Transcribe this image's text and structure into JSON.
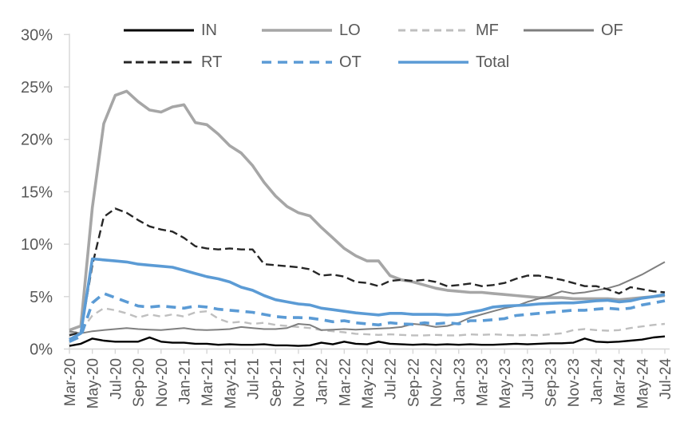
{
  "chart_data": {
    "type": "line",
    "title": "",
    "x_start": "Mar-20",
    "x_end": "Jul-24",
    "x_freq": "monthly",
    "x_tick_labels": [
      "Mar-20",
      "May-20",
      "Jul-20",
      "Sep-20",
      "Nov-20",
      "Jan-21",
      "Mar-21",
      "May-21",
      "Jul-21",
      "Sep-21",
      "Nov-21",
      "Jan-22",
      "Mar-22",
      "May-22",
      "Jul-22",
      "Sep-22",
      "Nov-22",
      "Jan-23",
      "Mar-23",
      "May-23",
      "Jul-23",
      "Sep-23",
      "Nov-23",
      "Jan-24",
      "Mar-24",
      "May-24",
      "Jul-24"
    ],
    "y_ticks": [
      "0%",
      "5%",
      "10%",
      "15%",
      "20%",
      "25%",
      "30%"
    ],
    "ylim": [
      0,
      30
    ],
    "grid": false,
    "legend_position": "top",
    "axis_color": "#d6d6d6",
    "label_color": "#595959",
    "series": [
      {
        "name": "IN",
        "color": "#000000",
        "dash": "",
        "width": 2.4,
        "values": [
          0.3,
          0.5,
          1.0,
          0.8,
          0.7,
          0.7,
          0.7,
          1.1,
          0.7,
          0.6,
          0.6,
          0.5,
          0.5,
          0.4,
          0.45,
          0.4,
          0.4,
          0.45,
          0.35,
          0.35,
          0.3,
          0.35,
          0.6,
          0.45,
          0.7,
          0.5,
          0.45,
          0.7,
          0.5,
          0.45,
          0.4,
          0.45,
          0.4,
          0.45,
          0.4,
          0.45,
          0.4,
          0.4,
          0.45,
          0.5,
          0.45,
          0.5,
          0.55,
          0.55,
          0.6,
          1.0,
          0.7,
          0.65,
          0.7,
          0.8,
          0.9,
          1.1,
          1.2
        ]
      },
      {
        "name": "LO",
        "color": "#a6a6a6",
        "dash": "",
        "width": 3.6,
        "values": [
          1.8,
          2.2,
          13.5,
          21.5,
          24.2,
          24.6,
          23.6,
          22.8,
          22.6,
          23.1,
          23.3,
          21.6,
          21.4,
          20.5,
          19.4,
          18.7,
          17.5,
          15.9,
          14.6,
          13.6,
          13.0,
          12.7,
          11.6,
          10.6,
          9.6,
          8.9,
          8.4,
          8.4,
          7.0,
          6.6,
          6.4,
          6.1,
          5.8,
          5.6,
          5.5,
          5.4,
          5.4,
          5.3,
          5.2,
          5.1,
          5.0,
          4.9,
          4.9,
          4.9,
          4.8,
          4.8,
          4.8,
          4.8,
          4.7,
          4.8,
          4.9,
          5.0,
          5.1
        ]
      },
      {
        "name": "MF",
        "color": "#bfbfbf",
        "dash": "9,6",
        "width": 2.4,
        "values": [
          1.5,
          1.7,
          3.2,
          3.9,
          3.7,
          3.4,
          3.0,
          3.3,
          3.1,
          3.3,
          3.1,
          3.5,
          3.6,
          2.9,
          2.5,
          2.6,
          2.4,
          2.5,
          2.3,
          2.2,
          2.1,
          2.0,
          1.8,
          1.7,
          1.6,
          1.45,
          1.4,
          1.35,
          1.4,
          1.35,
          1.3,
          1.3,
          1.35,
          1.3,
          1.3,
          1.4,
          1.35,
          1.4,
          1.35,
          1.3,
          1.35,
          1.3,
          1.4,
          1.5,
          1.8,
          1.9,
          1.8,
          1.75,
          1.8,
          2.0,
          2.15,
          2.3,
          2.4
        ]
      },
      {
        "name": "OF",
        "color": "#7f7f7f",
        "dash": "",
        "width": 2.0,
        "values": [
          1.7,
          1.5,
          1.7,
          1.8,
          1.9,
          2.0,
          1.9,
          1.85,
          1.8,
          1.9,
          2.0,
          1.85,
          1.8,
          1.85,
          1.9,
          2.1,
          2.0,
          1.9,
          1.9,
          2.0,
          2.4,
          2.3,
          1.8,
          1.85,
          1.9,
          1.85,
          1.9,
          1.95,
          2.0,
          2.1,
          2.4,
          2.3,
          2.1,
          2.2,
          2.5,
          3.0,
          3.3,
          3.6,
          3.9,
          4.1,
          4.5,
          4.8,
          5.1,
          5.5,
          5.3,
          5.4,
          5.6,
          5.8,
          6.1,
          6.6,
          7.1,
          7.7,
          8.3
        ]
      },
      {
        "name": "RT",
        "color": "#262626",
        "dash": "10,5",
        "width": 2.4,
        "values": [
          1.3,
          1.6,
          8.0,
          12.6,
          13.4,
          13.0,
          12.3,
          11.7,
          11.4,
          11.2,
          10.6,
          9.8,
          9.6,
          9.5,
          9.6,
          9.5,
          9.5,
          8.1,
          8.0,
          7.9,
          7.8,
          7.6,
          7.0,
          7.1,
          6.9,
          6.4,
          6.3,
          6.0,
          6.5,
          6.6,
          6.5,
          6.6,
          6.4,
          6.0,
          6.1,
          6.25,
          6.0,
          6.1,
          6.3,
          6.7,
          7.0,
          7.0,
          6.8,
          6.6,
          6.3,
          6.0,
          6.0,
          5.7,
          5.3,
          5.9,
          5.7,
          5.5,
          5.4
        ]
      },
      {
        "name": "OT",
        "color": "#5b9bd5",
        "dash": "12,8",
        "width": 3.6,
        "values": [
          0.7,
          1.2,
          4.4,
          5.3,
          4.9,
          4.5,
          4.1,
          4.0,
          4.1,
          4.0,
          3.9,
          4.1,
          4.0,
          3.8,
          3.7,
          3.6,
          3.5,
          3.3,
          3.1,
          3.0,
          3.0,
          2.95,
          2.8,
          2.6,
          2.7,
          2.5,
          2.4,
          2.3,
          2.5,
          2.4,
          2.35,
          2.5,
          2.4,
          2.5,
          2.4,
          2.7,
          2.7,
          2.8,
          2.9,
          3.2,
          3.3,
          3.4,
          3.5,
          3.6,
          3.7,
          3.7,
          3.8,
          3.9,
          3.8,
          3.9,
          4.2,
          4.4,
          4.6
        ]
      },
      {
        "name": "Total",
        "color": "#5b9bd5",
        "dash": "",
        "width": 3.6,
        "values": [
          0.9,
          1.5,
          8.6,
          8.5,
          8.4,
          8.3,
          8.1,
          8.0,
          7.9,
          7.8,
          7.5,
          7.2,
          6.9,
          6.7,
          6.4,
          5.9,
          5.6,
          5.1,
          4.7,
          4.5,
          4.3,
          4.2,
          3.9,
          3.75,
          3.6,
          3.45,
          3.35,
          3.25,
          3.4,
          3.4,
          3.3,
          3.3,
          3.3,
          3.25,
          3.3,
          3.5,
          3.7,
          4.0,
          4.1,
          4.15,
          4.2,
          4.3,
          4.35,
          4.4,
          4.4,
          4.5,
          4.6,
          4.65,
          4.5,
          4.6,
          4.85,
          5.0,
          5.2
        ]
      }
    ]
  },
  "legend": {
    "row1": [
      "IN",
      "LO",
      "MF",
      "OF"
    ],
    "row2": [
      "RT",
      "OT",
      "Total"
    ]
  }
}
